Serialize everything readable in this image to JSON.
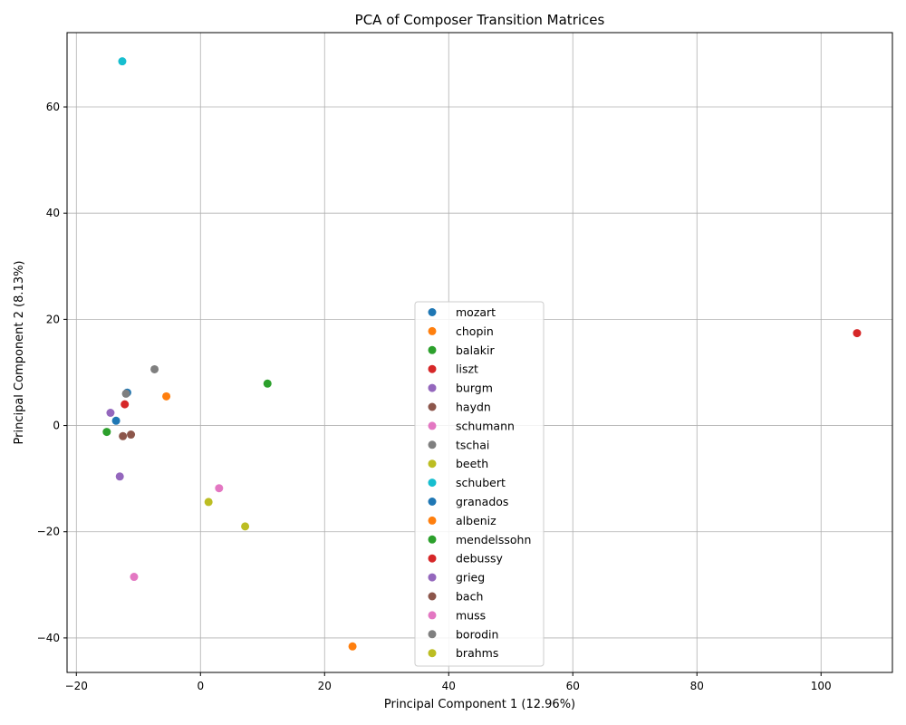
{
  "chart_data": {
    "type": "scatter",
    "title": "PCA of Composer Transition Matrices",
    "xlabel": "Principal Component 1 (12.96%)",
    "ylabel": "Principal Component 2 (8.13%)",
    "xlim": [
      -21.5,
      111.5
    ],
    "ylim": [
      -46.5,
      74
    ],
    "xticks": [
      -20,
      0,
      20,
      40,
      60,
      80,
      100
    ],
    "yticks": [
      -40,
      -20,
      0,
      20,
      40,
      60
    ],
    "grid": true,
    "legend_position": "lower-center",
    "series": [
      {
        "name": "mozart",
        "color": "#1f77b4",
        "points": [
          [
            -11.8,
            6.2
          ]
        ]
      },
      {
        "name": "chopin",
        "color": "#ff7f0e",
        "points": [
          [
            -5.5,
            5.5
          ]
        ]
      },
      {
        "name": "balakir",
        "color": "#2ca02c",
        "points": [
          [
            10.8,
            7.9
          ]
        ]
      },
      {
        "name": "liszt",
        "color": "#d62728",
        "points": [
          [
            105.8,
            17.4
          ]
        ]
      },
      {
        "name": "burgm",
        "color": "#9467bd",
        "points": [
          [
            -14.5,
            2.4
          ]
        ]
      },
      {
        "name": "haydn",
        "color": "#8c564b",
        "points": [
          [
            -11.2,
            -1.7
          ]
        ]
      },
      {
        "name": "schumann",
        "color": "#e377c2",
        "points": [
          [
            3.0,
            -11.8
          ]
        ]
      },
      {
        "name": "tschai",
        "color": "#7f7f7f",
        "points": [
          [
            -12.0,
            6.0
          ]
        ]
      },
      {
        "name": "beeth",
        "color": "#bcbd22",
        "points": [
          [
            7.2,
            -19.0
          ]
        ]
      },
      {
        "name": "schubert",
        "color": "#17becf",
        "points": [
          [
            -12.6,
            68.6
          ]
        ]
      },
      {
        "name": "granados",
        "color": "#1f77b4",
        "points": [
          [
            -13.6,
            0.9
          ]
        ]
      },
      {
        "name": "albeniz",
        "color": "#ff7f0e",
        "points": [
          [
            24.5,
            -41.6
          ]
        ]
      },
      {
        "name": "mendelssohn",
        "color": "#2ca02c",
        "points": [
          [
            -15.1,
            -1.2
          ]
        ]
      },
      {
        "name": "debussy",
        "color": "#d62728",
        "points": [
          [
            -12.2,
            4.0
          ]
        ]
      },
      {
        "name": "grieg",
        "color": "#9467bd",
        "points": [
          [
            -13.0,
            -9.6
          ]
        ]
      },
      {
        "name": "bach",
        "color": "#8c564b",
        "points": [
          [
            -12.5,
            -2.0
          ]
        ]
      },
      {
        "name": "muss",
        "color": "#e377c2",
        "points": [
          [
            -10.7,
            -28.5
          ]
        ]
      },
      {
        "name": "borodin",
        "color": "#7f7f7f",
        "points": [
          [
            -7.4,
            10.6
          ]
        ]
      },
      {
        "name": "brahms",
        "color": "#bcbd22",
        "points": [
          [
            1.3,
            -14.4
          ]
        ]
      }
    ]
  }
}
